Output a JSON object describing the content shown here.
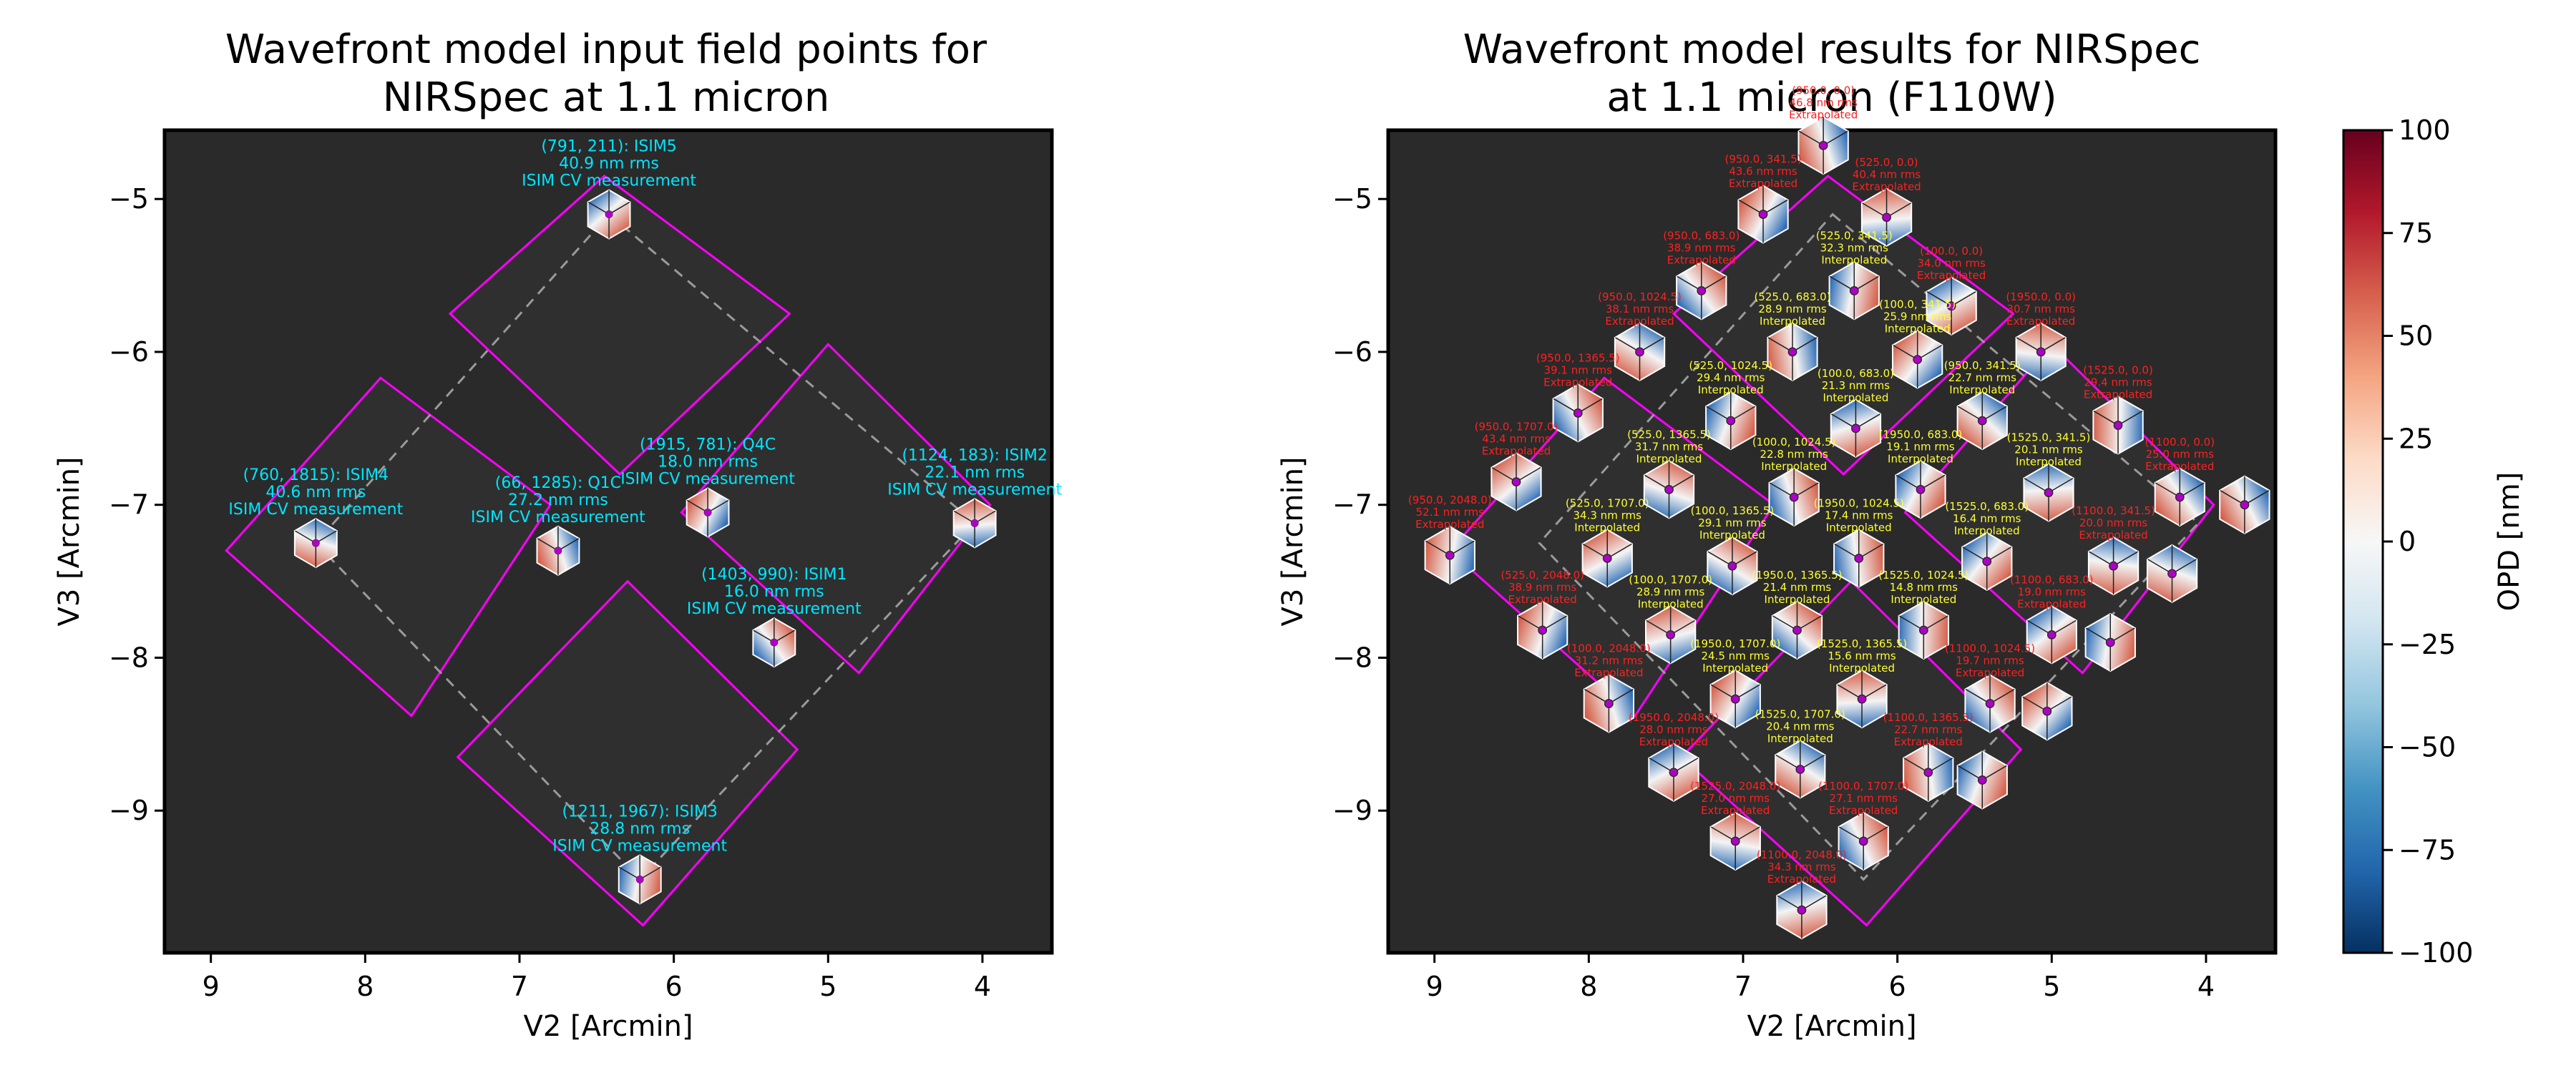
{
  "chart_data": [
    {
      "type": "scatter",
      "title_line1": "Wavefront model input field points for",
      "title_line2": "NIRSpec at 1.1 micron",
      "xlabel": "V2 [Arcmin]",
      "ylabel": "V3 [Arcmin]",
      "xlim": [
        9.3,
        3.55
      ],
      "ylim": [
        -9.93,
        -4.55
      ],
      "xticks": [
        9,
        8,
        7,
        6,
        5,
        4
      ],
      "yticks": [
        -5,
        -6,
        -7,
        -8,
        -9
      ],
      "points": [
        {
          "x": 6.42,
          "y": -5.1,
          "label1": "(791, 211): ISIM5",
          "label2": "40.9 nm rms",
          "label3": "ISIM CV measurement"
        },
        {
          "x": 8.32,
          "y": -7.25,
          "label1": "(760, 1815): ISIM4",
          "label2": "40.6 nm rms",
          "label3": "ISIM CV measurement"
        },
        {
          "x": 6.75,
          "y": -7.3,
          "label1": "(66, 1285): Q1C",
          "label2": "27.2 nm rms",
          "label3": "ISIM CV measurement"
        },
        {
          "x": 5.78,
          "y": -7.05,
          "label1": "(1915, 781): Q4C",
          "label2": "18.0 nm rms",
          "label3": "ISIM CV measurement"
        },
        {
          "x": 4.05,
          "y": -7.12,
          "label1": "(1124, 183): ISIM2",
          "label2": "22.1 nm rms",
          "label3": "ISIM CV measurement"
        },
        {
          "x": 5.35,
          "y": -7.9,
          "label1": "(1403, 990): ISIM1",
          "label2": "16.0 nm rms",
          "label3": "ISIM CV measurement"
        },
        {
          "x": 6.22,
          "y": -9.45,
          "label1": "(1211, 1967): ISIM3",
          "label2": "28.8 nm rms",
          "label3": "ISIM CV measurement"
        }
      ]
    },
    {
      "type": "scatter",
      "title_line1": "Wavefront model results for NIRSpec",
      "title_line2": "at 1.1 micron (F110W)",
      "xlabel": "V2 [Arcmin]",
      "ylabel": "V3 [Arcmin]",
      "xlim": [
        9.3,
        3.55
      ],
      "ylim": [
        -9.93,
        -4.55
      ],
      "xticks": [
        9,
        8,
        7,
        6,
        5,
        4
      ],
      "yticks": [
        -5,
        -6,
        -7,
        -8,
        -9
      ],
      "colorbar": {
        "label": "OPD [nm]",
        "min": -100,
        "max": 100,
        "ticks": [
          100,
          75,
          50,
          25,
          0,
          -25,
          -50,
          -75,
          -100
        ],
        "colormap": "RdBu_r"
      },
      "points": [
        {
          "x": 6.48,
          "y": -4.65,
          "label1": "(950.0, 0.0)",
          "label2": "46.8 nm rms",
          "label3": "Extrapolated"
        },
        {
          "x": 6.87,
          "y": -5.1,
          "label1": "(950.0, 341.5)",
          "label2": "43.6 nm rms",
          "label3": "Extrapolated"
        },
        {
          "x": 6.07,
          "y": -5.12,
          "label1": "(525.0, 0.0)",
          "label2": "40.4 nm rms",
          "label3": "Extrapolated"
        },
        {
          "x": 7.27,
          "y": -5.6,
          "label1": "(950.0, 683.0)",
          "label2": "38.9 nm rms",
          "label3": "Extrapolated"
        },
        {
          "x": 6.28,
          "y": -5.6,
          "label1": "(525.0, 341.5)",
          "label2": "32.3 nm rms",
          "label3": "Interpolated"
        },
        {
          "x": 5.65,
          "y": -5.7,
          "label1": "(100.0, 0.0)",
          "label2": "34.0 nm rms",
          "label3": "Extrapolated"
        },
        {
          "x": 7.67,
          "y": -6.0,
          "label1": "(950.0, 1024.5)",
          "label2": "38.1 nm rms",
          "label3": "Extrapolated"
        },
        {
          "x": 6.68,
          "y": -6.0,
          "label1": "(525.0, 683.0)",
          "label2": "28.9 nm rms",
          "label3": "Interpolated"
        },
        {
          "x": 5.87,
          "y": -6.05,
          "label1": "(100.0, 341.5)",
          "label2": "25.9 nm rms",
          "label3": "Interpolated"
        },
        {
          "x": 5.07,
          "y": -6.0,
          "label1": "(1950.0, 0.0)",
          "label2": "30.7 nm rms",
          "label3": "Extrapolated"
        },
        {
          "x": 8.07,
          "y": -6.4,
          "label1": "(950.0, 1365.5)",
          "label2": "39.1 nm rms",
          "label3": "Extrapolated"
        },
        {
          "x": 7.08,
          "y": -6.45,
          "label1": "(525.0, 1024.5)",
          "label2": "29.4 nm rms",
          "label3": "Interpolated"
        },
        {
          "x": 6.27,
          "y": -6.5,
          "label1": "(100.0, 683.0)",
          "label2": "21.3 nm rms",
          "label3": "Interpolated"
        },
        {
          "x": 5.45,
          "y": -6.45,
          "label1": "(950.0, 341.5)",
          "label2": "22.7 nm rms",
          "label3": "Interpolated"
        },
        {
          "x": 4.57,
          "y": -6.48,
          "label1": "(1525.0, 0.0)",
          "label2": "29.4 nm rms",
          "label3": "Extrapolated"
        },
        {
          "x": 8.47,
          "y": -6.85,
          "label1": "(950.0, 1707.0)",
          "label2": "43.4 nm rms",
          "label3": "Extrapolated"
        },
        {
          "x": 7.48,
          "y": -6.9,
          "label1": "(525.0, 1365.5)",
          "label2": "31.7 nm rms",
          "label3": "Interpolated"
        },
        {
          "x": 6.67,
          "y": -6.95,
          "label1": "(100.0, 1024.5)",
          "label2": "22.8 nm rms",
          "label3": "Interpolated"
        },
        {
          "x": 5.85,
          "y": -6.9,
          "label1": "(1950.0, 683.0)",
          "label2": "19.1 nm rms",
          "label3": "Interpolated"
        },
        {
          "x": 5.02,
          "y": -6.92,
          "label1": "(1525.0, 341.5)",
          "label2": "20.1 nm rms",
          "label3": "Interpolated"
        },
        {
          "x": 4.17,
          "y": -6.95,
          "label1": "(1100.0, 0.0)",
          "label2": "25.0 nm rms",
          "label3": "Extrapolated"
        },
        {
          "x": 8.9,
          "y": -7.33,
          "label1": "(950.0, 2048.0)",
          "label2": "52.1 nm rms",
          "label3": "Extrapolated"
        },
        {
          "x": 7.88,
          "y": -7.35,
          "label1": "(525.0, 1707.0)",
          "label2": "34.3 nm rms",
          "label3": "Interpolated"
        },
        {
          "x": 7.07,
          "y": -7.4,
          "label1": "(100.0, 1365.5)",
          "label2": "29.1 nm rms",
          "label3": "Interpolated"
        },
        {
          "x": 6.25,
          "y": -7.35,
          "label1": "(1950.0, 1024.5)",
          "label2": "17.4 nm rms",
          "label3": "Interpolated"
        },
        {
          "x": 5.42,
          "y": -7.37,
          "label1": "(1525.0, 683.0)",
          "label2": "16.4 nm rms",
          "label3": "Interpolated"
        },
        {
          "x": 4.6,
          "y": -7.4,
          "label1": "(1100.0, 341.5)",
          "label2": "20.0 nm rms",
          "label3": "Extrapolated"
        },
        {
          "x": 3.75,
          "y": -7.0,
          "label1": "",
          "label2": "",
          "label3": ""
        },
        {
          "x": 8.3,
          "y": -7.82,
          "label1": "(525.0, 2048.0)",
          "label2": "38.9 nm rms",
          "label3": "Extrapolated"
        },
        {
          "x": 7.47,
          "y": -7.85,
          "label1": "(100.0, 1707.0)",
          "label2": "28.9 nm rms",
          "label3": "Interpolated"
        },
        {
          "x": 6.65,
          "y": -7.82,
          "label1": "(1950.0, 1365.5)",
          "label2": "21.4 nm rms",
          "label3": "Interpolated"
        },
        {
          "x": 5.83,
          "y": -7.82,
          "label1": "(1525.0, 1024.5)",
          "label2": "14.8 nm rms",
          "label3": "Interpolated"
        },
        {
          "x": 5.0,
          "y": -7.85,
          "label1": "(1100.0, 683.0)",
          "label2": "19.0 nm rms",
          "label3": "Extrapolated"
        },
        {
          "x": 4.22,
          "y": -7.45,
          "label1": "",
          "label2": "",
          "label3": ""
        },
        {
          "x": 7.87,
          "y": -8.3,
          "label1": "(100.0, 2048.0)",
          "label2": "31.2 nm rms",
          "label3": "Extrapolated"
        },
        {
          "x": 7.05,
          "y": -8.27,
          "label1": "(1950.0, 1707.0)",
          "label2": "24.5 nm rms",
          "label3": "Interpolated"
        },
        {
          "x": 6.23,
          "y": -8.27,
          "label1": "(1525.0, 1365.5)",
          "label2": "15.6 nm rms",
          "label3": "Interpolated"
        },
        {
          "x": 5.4,
          "y": -8.3,
          "label1": "(1100.0, 1024.5)",
          "label2": "19.7 nm rms",
          "label3": "Extrapolated"
        },
        {
          "x": 4.62,
          "y": -7.9,
          "label1": "",
          "label2": "",
          "label3": ""
        },
        {
          "x": 7.45,
          "y": -8.75,
          "label1": "(1950.0, 2048.0)",
          "label2": "28.0 nm rms",
          "label3": "Extrapolated"
        },
        {
          "x": 6.63,
          "y": -8.73,
          "label1": "(1525.0, 1707.0)",
          "label2": "20.4 nm rms",
          "label3": "Interpolated"
        },
        {
          "x": 5.8,
          "y": -8.75,
          "label1": "(1100.0, 1365.5)",
          "label2": "22.7 nm rms",
          "label3": "Extrapolated"
        },
        {
          "x": 5.03,
          "y": -8.35,
          "label1": "",
          "label2": "",
          "label3": ""
        },
        {
          "x": 7.05,
          "y": -9.2,
          "label1": "(1525.0, 2048.0)",
          "label2": "27.0 nm rms",
          "label3": "Extrapolated"
        },
        {
          "x": 6.22,
          "y": -9.2,
          "label1": "(1100.0, 1707.0)",
          "label2": "27.1 nm rms",
          "label3": "Extrapolated"
        },
        {
          "x": 5.45,
          "y": -8.8,
          "label1": "",
          "label2": "",
          "label3": ""
        },
        {
          "x": 6.62,
          "y": -9.65,
          "label1": "(1100.0, 2048.0)",
          "label2": "34.3 nm rms",
          "label3": "Extrapolated"
        }
      ]
    }
  ]
}
